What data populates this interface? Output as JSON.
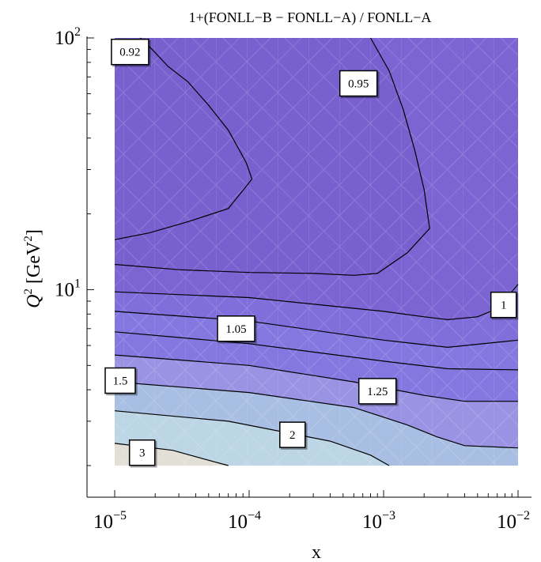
{
  "chart_data": {
    "type": "contour",
    "title": "1+(FONLL−B − FONLL−A) / FONLL−A",
    "xlabel": "x",
    "ylabel": "Q² [GeV²]",
    "ylabel_parts": {
      "var": "Q",
      "var_exp": "2",
      "unit_open": "[GeV",
      "unit_exp": "2",
      "unit_close": "]"
    },
    "x_scale": "log",
    "y_scale": "log",
    "xlim": [
      1e-05,
      0.01
    ],
    "ylim": [
      2,
      100
    ],
    "x_ticks": [
      {
        "value": 1e-05,
        "base": "10",
        "exp": "−5"
      },
      {
        "value": 0.0001,
        "base": "10",
        "exp": "−4"
      },
      {
        "value": 0.001,
        "base": "10",
        "exp": "−3"
      },
      {
        "value": 0.01,
        "base": "10",
        "exp": "−2"
      }
    ],
    "y_ticks": [
      {
        "value": 10,
        "base": "10",
        "exp": "1"
      },
      {
        "value": 100,
        "base": "10",
        "exp": "2"
      }
    ],
    "colors": {
      "lowest": "#7860cf",
      "level_095": "#7c64d3",
      "level_1": "#806edb",
      "level_105": "#8478e0",
      "level_125": "#9a93e4",
      "level_15": "#a8bfe3",
      "level_2": "#bcd6e6",
      "level_3": "#e2dfd7",
      "line": "#000000"
    },
    "contours": [
      {
        "level": "0.92",
        "points": [
          [
            1e-05,
            15.8
          ],
          [
            1.8e-05,
            16.8
          ],
          [
            3.5e-05,
            18.6
          ],
          [
            7e-05,
            21
          ],
          [
            0.000105,
            27.5
          ],
          [
            9.5e-05,
            32
          ],
          [
            7e-05,
            43
          ],
          [
            5e-05,
            54
          ],
          [
            3.5e-05,
            67
          ],
          [
            2.5e-05,
            77
          ],
          [
            1.9e-05,
            90
          ],
          [
            1.55e-05,
            100
          ]
        ],
        "label_at": [
          1.3e-05,
          88
        ],
        "label_text": "0.92"
      },
      {
        "level": "0.95",
        "points": [
          [
            1e-05,
            12.6
          ],
          [
            3e-05,
            12
          ],
          [
            0.0001,
            11.7
          ],
          [
            0.0003,
            11.6
          ],
          [
            0.0006,
            11.4
          ],
          [
            0.0009,
            11.6
          ],
          [
            0.0015,
            14
          ],
          [
            0.0022,
            17.5
          ],
          [
            0.002,
            25
          ],
          [
            0.0017,
            36
          ],
          [
            0.0014,
            52
          ],
          [
            0.0011,
            74
          ],
          [
            0.0008,
            100
          ]
        ],
        "label_at": [
          0.00065,
          66
        ],
        "label_text": "0.95"
      },
      {
        "level": "1",
        "points": [
          [
            1e-05,
            9.8
          ],
          [
            0.0001,
            9.3
          ],
          [
            0.001,
            8.2
          ],
          [
            0.002,
            7.8
          ],
          [
            0.003,
            7.6
          ],
          [
            0.005,
            7.8
          ],
          [
            0.007,
            8.4
          ],
          [
            0.01,
            10.5
          ]
        ],
        "label_at": [
          0.0078,
          8.7
        ],
        "label_text": "1"
      },
      {
        "level": "1.05",
        "points": [
          [
            1e-05,
            8.2
          ],
          [
            0.0001,
            7.5
          ],
          [
            0.001,
            6.3
          ],
          [
            0.003,
            5.9
          ],
          [
            0.01,
            6.3
          ]
        ],
        "label_at": [
          8e-05,
          7
        ],
        "label_text": "1.05"
      },
      {
        "level": "1.1",
        "points": [
          [
            1e-05,
            6.8
          ],
          [
            0.0001,
            6.1
          ],
          [
            0.001,
            5.2
          ],
          [
            0.003,
            4.85
          ],
          [
            0.01,
            4.8
          ]
        ],
        "label_at": null,
        "label_text": ""
      },
      {
        "level": "1.25",
        "points": [
          [
            1e-05,
            5.5
          ],
          [
            0.0001,
            5
          ],
          [
            0.0006,
            4.3
          ],
          [
            0.002,
            3.8
          ],
          [
            0.004,
            3.6
          ],
          [
            0.01,
            3.6
          ]
        ],
        "label_at": [
          0.0009,
          3.95
        ],
        "label_text": "1.25"
      },
      {
        "level": "1.5",
        "points": [
          [
            1e-05,
            4.3
          ],
          [
            0.0001,
            3.9
          ],
          [
            0.0006,
            3.4
          ],
          [
            0.0015,
            2.9
          ],
          [
            0.0025,
            2.6
          ],
          [
            0.004,
            2.4
          ],
          [
            0.01,
            2.35
          ]
        ],
        "label_at": [
          1.1e-05,
          4.35
        ],
        "label_text": "1.5"
      },
      {
        "level": "2",
        "points": [
          [
            1e-05,
            3.3
          ],
          [
            7e-05,
            3
          ],
          [
            0.0004,
            2.5
          ],
          [
            0.0008,
            2.2
          ],
          [
            0.0011,
            2
          ]
        ],
        "label_at": [
          0.00021,
          2.65
        ],
        "label_text": "2"
      },
      {
        "level": "3",
        "points": [
          [
            1e-05,
            2.45
          ],
          [
            2.7e-05,
            2.3
          ],
          [
            5e-05,
            2.1
          ],
          [
            7e-05,
            2
          ]
        ],
        "label_at": [
          1.6e-05,
          2.25
        ],
        "label_text": "3"
      }
    ]
  }
}
